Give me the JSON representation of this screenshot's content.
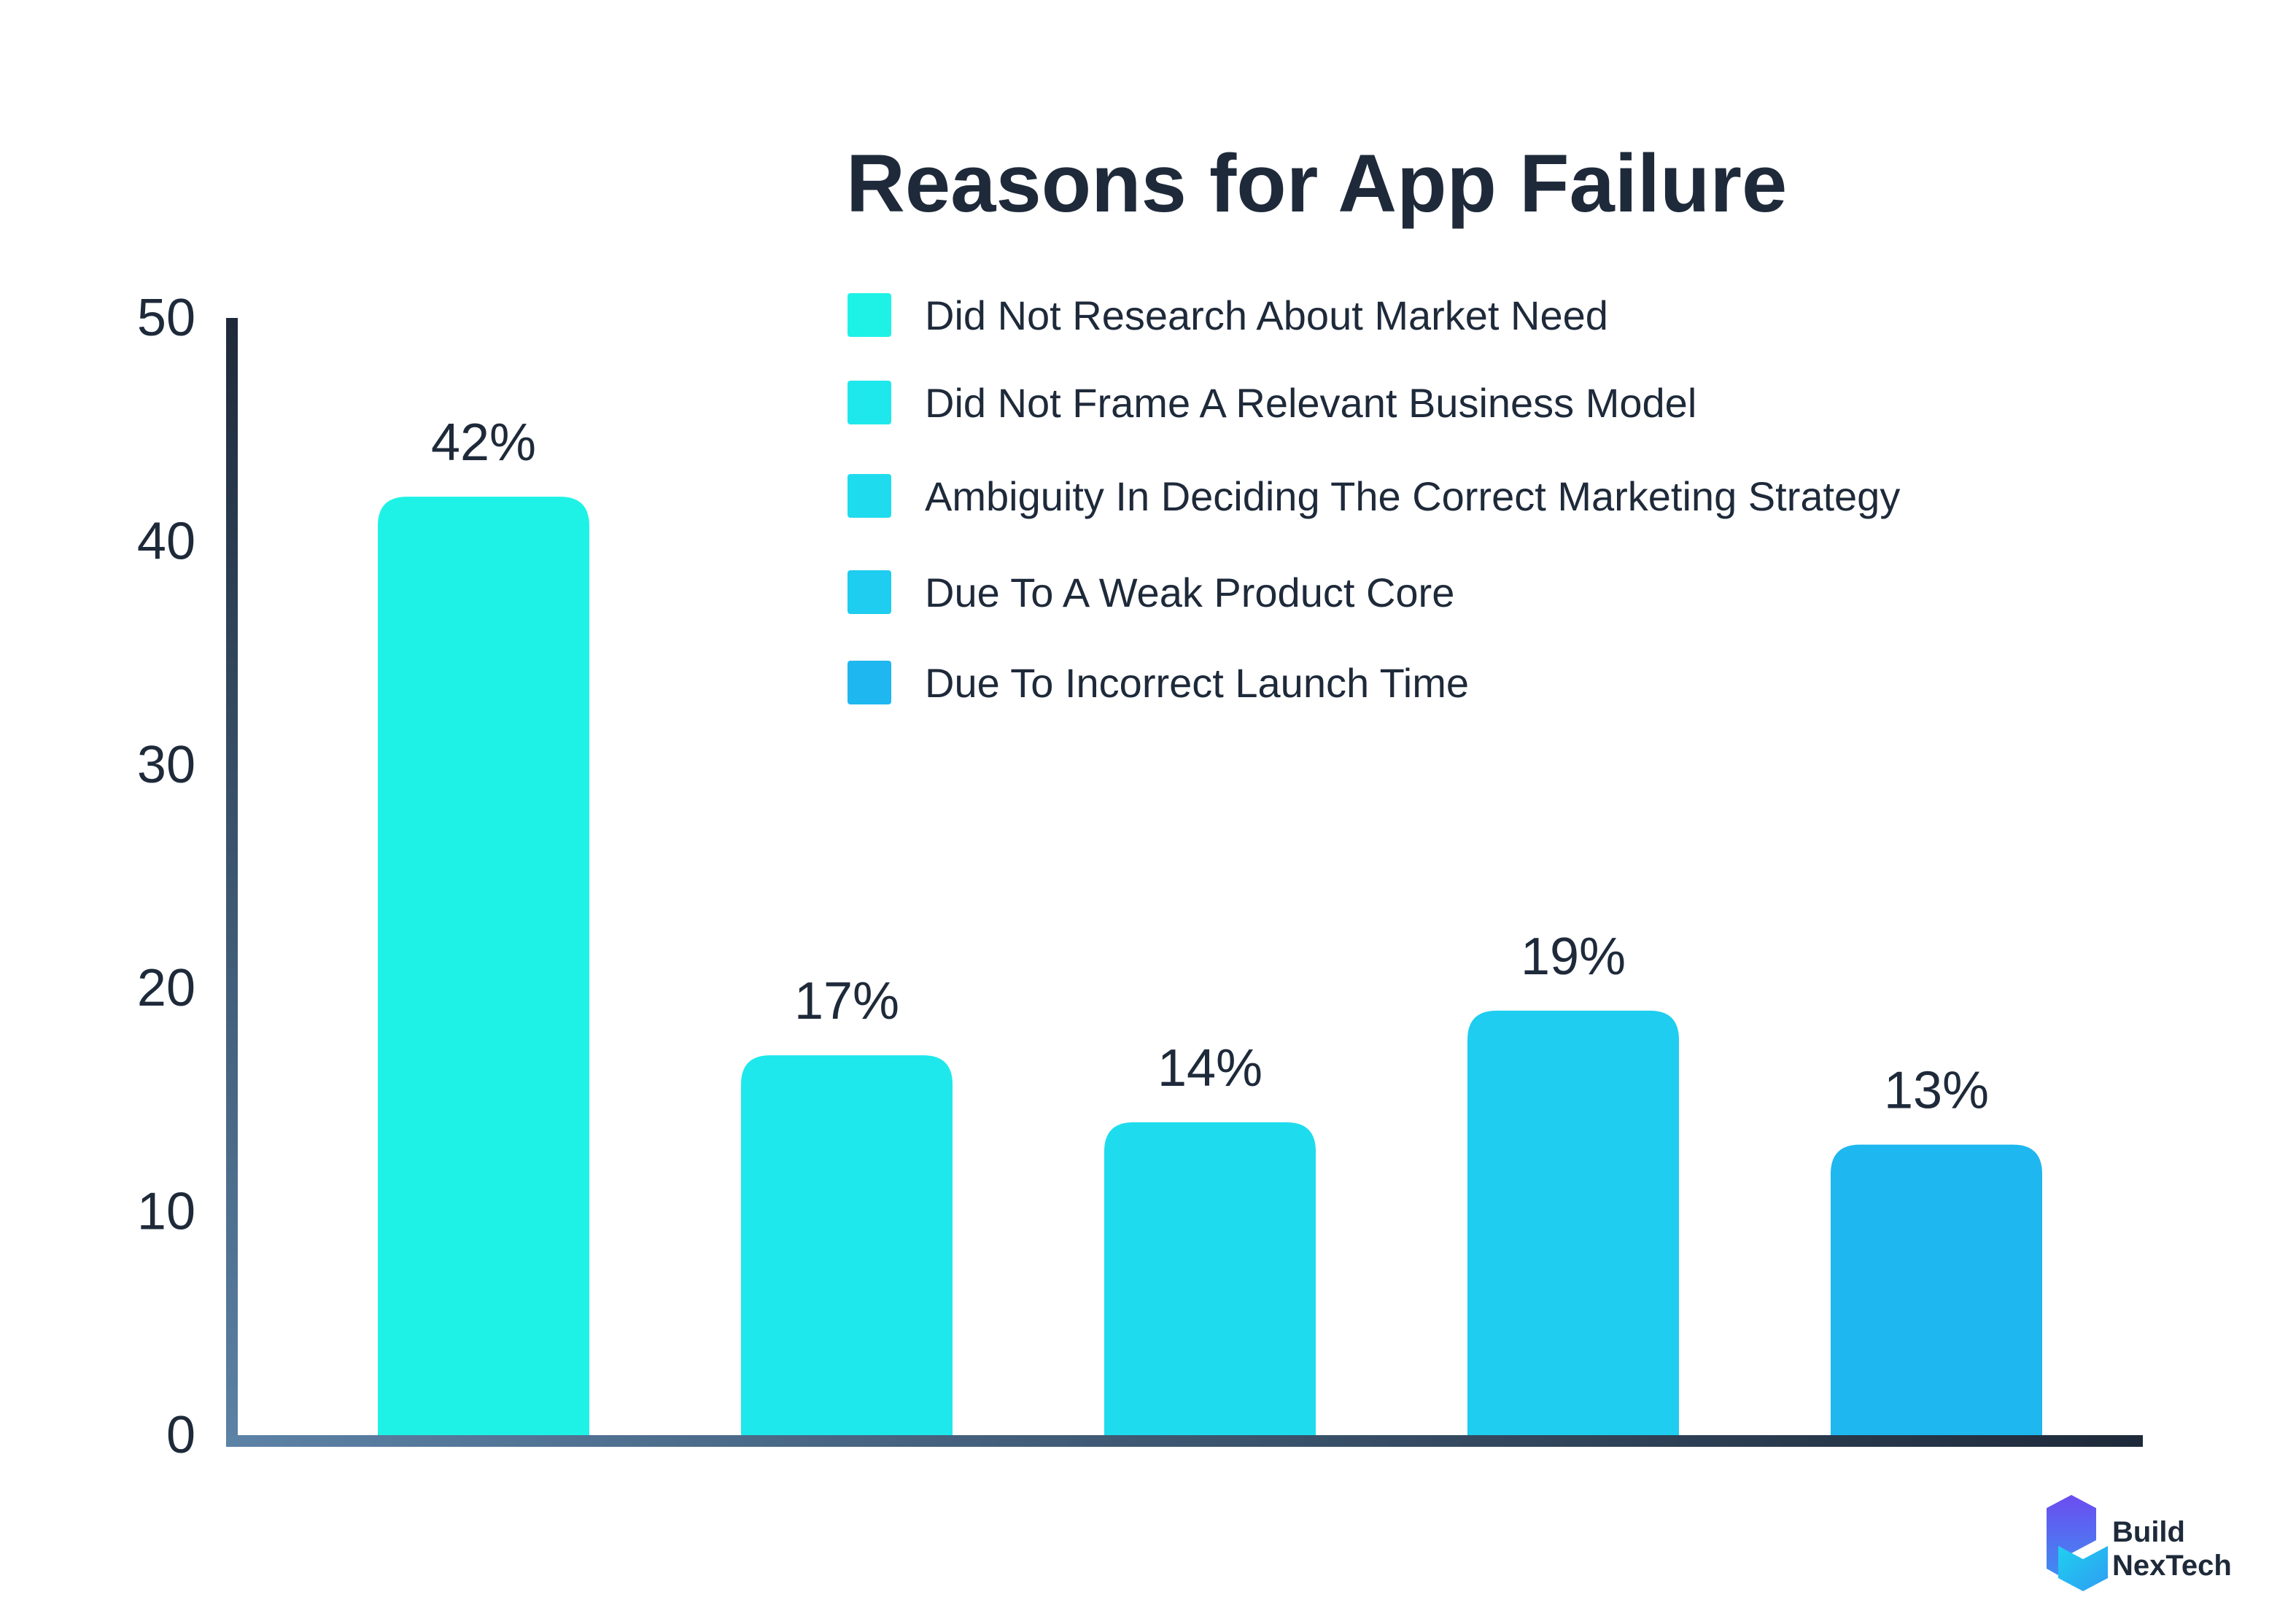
{
  "chart_data": {
    "type": "bar",
    "title": "Reasons for App Failure",
    "categories": [
      "Did Not Research About Market Need",
      "Did Not Frame A Relevant Business Model",
      "Ambiguity In Deciding The Correct Marketing Strategy",
      "Due To A Weak Product Core",
      "Due To Incorrect Launch Time"
    ],
    "values": [
      42,
      17,
      14,
      19,
      13
    ],
    "data_labels": [
      "42%",
      "17%",
      "14%",
      "19%",
      "13%"
    ],
    "colors": [
      "#1ef2e6",
      "#1ee8ec",
      "#1edcee",
      "#1ecdef",
      "#1eb7ef"
    ],
    "ylim": [
      0,
      50
    ],
    "yticks": [
      "0",
      "10",
      "20",
      "30",
      "40",
      "50"
    ],
    "xlabel": "",
    "ylabel": "",
    "grid": false,
    "legend_position": "top-right"
  },
  "logo": {
    "line1": "Build",
    "line2": "NexTech",
    "icon": "buildnextech-logo-icon"
  }
}
